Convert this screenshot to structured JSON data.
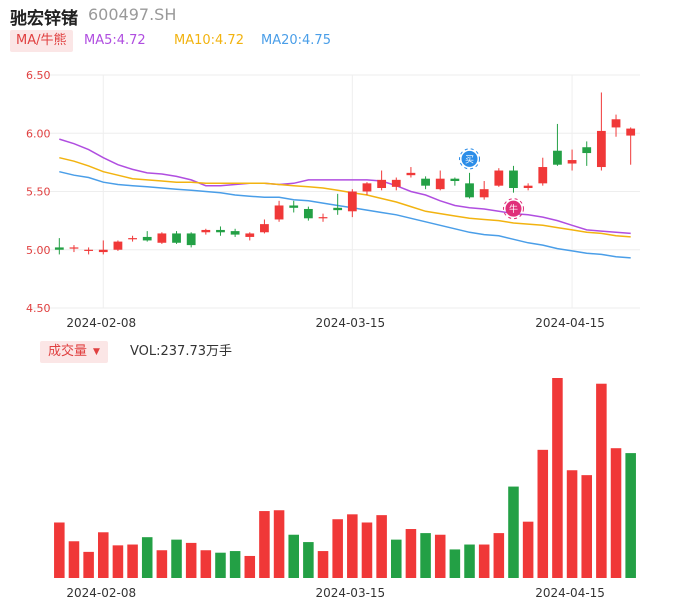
{
  "stock": {
    "name": "驰宏锌锗",
    "code": "600497.SH"
  },
  "ma_legend": {
    "selector_label": "MA/牛熊",
    "ma5": "MA5:4.72",
    "ma10": "MA10:4.72",
    "ma20": "MA20:4.75"
  },
  "volume_legend": {
    "selector_label": "成交量",
    "caret": "▼",
    "value_text": "VOL:237.73万手"
  },
  "colors": {
    "up": "#f03838",
    "down": "#23a045",
    "ma5": "#b04ee0",
    "ma10": "#f2b310",
    "ma20": "#4a9ee8",
    "grid": "#eeeeee",
    "axis_label": "#e04040",
    "date_label": "#333333"
  },
  "badges": [
    {
      "icon": "buy-signal-icon",
      "label": "买",
      "day_index": 28
    },
    {
      "icon": "bull-signal-icon",
      "label": "牛",
      "day_index": 31
    }
  ],
  "chart_data": [
    {
      "type": "candlestick",
      "title": "",
      "ylim": [
        4.5,
        6.5
      ],
      "y_ticks": [
        "6.50",
        "6.00",
        "5.50",
        "5.00",
        "4.50"
      ],
      "x_tick_labels": [
        {
          "index": 3,
          "label": "2024-02-08"
        },
        {
          "index": 20,
          "label": "2024-03-15"
        },
        {
          "index": 35,
          "label": "2024-04-15"
        }
      ],
      "grid": true,
      "candles": [
        {
          "o": 5.02,
          "h": 5.1,
          "l": 4.96,
          "c": 5.0
        },
        {
          "o": 5.01,
          "h": 5.04,
          "l": 4.98,
          "c": 5.02
        },
        {
          "o": 4.99,
          "h": 5.02,
          "l": 4.96,
          "c": 5.0
        },
        {
          "o": 4.98,
          "h": 5.08,
          "l": 4.96,
          "c": 5.0
        },
        {
          "o": 5.0,
          "h": 5.08,
          "l": 4.99,
          "c": 5.07
        },
        {
          "o": 5.09,
          "h": 5.12,
          "l": 5.07,
          "c": 5.1
        },
        {
          "o": 5.11,
          "h": 5.16,
          "l": 5.07,
          "c": 5.08
        },
        {
          "o": 5.06,
          "h": 5.15,
          "l": 5.05,
          "c": 5.14
        },
        {
          "o": 5.14,
          "h": 5.16,
          "l": 5.05,
          "c": 5.06
        },
        {
          "o": 5.14,
          "h": 5.15,
          "l": 5.02,
          "c": 5.04
        },
        {
          "o": 5.15,
          "h": 5.18,
          "l": 5.13,
          "c": 5.17
        },
        {
          "o": 5.17,
          "h": 5.2,
          "l": 5.12,
          "c": 5.15
        },
        {
          "o": 5.16,
          "h": 5.18,
          "l": 5.11,
          "c": 5.13
        },
        {
          "o": 5.11,
          "h": 5.15,
          "l": 5.08,
          "c": 5.14
        },
        {
          "o": 5.15,
          "h": 5.26,
          "l": 5.14,
          "c": 5.22
        },
        {
          "o": 5.26,
          "h": 5.42,
          "l": 5.24,
          "c": 5.38
        },
        {
          "o": 5.38,
          "h": 5.42,
          "l": 5.32,
          "c": 5.36
        },
        {
          "o": 5.35,
          "h": 5.37,
          "l": 5.25,
          "c": 5.27
        },
        {
          "o": 5.27,
          "h": 5.31,
          "l": 5.24,
          "c": 5.28
        },
        {
          "o": 5.36,
          "h": 5.48,
          "l": 5.3,
          "c": 5.34
        },
        {
          "o": 5.33,
          "h": 5.52,
          "l": 5.28,
          "c": 5.5
        },
        {
          "o": 5.5,
          "h": 5.58,
          "l": 5.47,
          "c": 5.57
        },
        {
          "o": 5.53,
          "h": 5.68,
          "l": 5.51,
          "c": 5.6
        },
        {
          "o": 5.54,
          "h": 5.62,
          "l": 5.51,
          "c": 5.6
        },
        {
          "o": 5.64,
          "h": 5.71,
          "l": 5.62,
          "c": 5.66
        },
        {
          "o": 5.61,
          "h": 5.63,
          "l": 5.52,
          "c": 5.55
        },
        {
          "o": 5.52,
          "h": 5.68,
          "l": 5.51,
          "c": 5.61
        },
        {
          "o": 5.61,
          "h": 5.62,
          "l": 5.55,
          "c": 5.59
        },
        {
          "o": 5.57,
          "h": 5.66,
          "l": 5.44,
          "c": 5.45
        },
        {
          "o": 5.45,
          "h": 5.59,
          "l": 5.43,
          "c": 5.52
        },
        {
          "o": 5.55,
          "h": 5.7,
          "l": 5.54,
          "c": 5.68
        },
        {
          "o": 5.68,
          "h": 5.72,
          "l": 5.49,
          "c": 5.53
        },
        {
          "o": 5.53,
          "h": 5.57,
          "l": 5.51,
          "c": 5.55
        },
        {
          "o": 5.57,
          "h": 5.79,
          "l": 5.55,
          "c": 5.71
        },
        {
          "o": 5.85,
          "h": 6.08,
          "l": 5.72,
          "c": 5.73
        },
        {
          "o": 5.74,
          "h": 5.86,
          "l": 5.68,
          "c": 5.77
        },
        {
          "o": 5.88,
          "h": 5.93,
          "l": 5.72,
          "c": 5.83
        },
        {
          "o": 5.71,
          "h": 6.35,
          "l": 5.68,
          "c": 6.02
        },
        {
          "o": 6.05,
          "h": 6.16,
          "l": 5.97,
          "c": 6.12
        },
        {
          "o": 5.98,
          "h": 6.05,
          "l": 5.73,
          "c": 6.04
        }
      ],
      "series": [
        {
          "name": "MA5",
          "values": [
            5.95,
            5.91,
            5.86,
            5.79,
            5.73,
            5.69,
            5.66,
            5.65,
            5.63,
            5.6,
            5.55,
            5.55,
            5.56,
            5.57,
            5.57,
            5.56,
            5.57,
            5.6,
            5.6,
            5.6,
            5.6,
            5.6,
            5.59,
            5.55,
            5.5,
            5.47,
            5.42,
            5.38,
            5.36,
            5.35,
            5.33,
            5.31,
            5.3,
            5.28,
            5.25,
            5.21,
            5.17,
            5.16,
            5.15,
            5.14
          ]
        },
        {
          "name": "MA10",
          "values": [
            5.79,
            5.76,
            5.72,
            5.67,
            5.64,
            5.61,
            5.6,
            5.59,
            5.58,
            5.58,
            5.57,
            5.57,
            5.57,
            5.57,
            5.57,
            5.56,
            5.55,
            5.54,
            5.53,
            5.51,
            5.49,
            5.47,
            5.44,
            5.41,
            5.37,
            5.33,
            5.31,
            5.29,
            5.27,
            5.26,
            5.25,
            5.23,
            5.22,
            5.21,
            5.19,
            5.17,
            5.15,
            5.14,
            5.12,
            5.11
          ]
        },
        {
          "name": "MA20",
          "values": [
            5.67,
            5.64,
            5.62,
            5.58,
            5.56,
            5.55,
            5.54,
            5.53,
            5.52,
            5.51,
            5.5,
            5.49,
            5.47,
            5.46,
            5.45,
            5.45,
            5.43,
            5.42,
            5.4,
            5.38,
            5.36,
            5.34,
            5.32,
            5.3,
            5.27,
            5.24,
            5.21,
            5.18,
            5.15,
            5.13,
            5.12,
            5.09,
            5.06,
            5.04,
            5.01,
            4.99,
            4.97,
            4.96,
            4.94,
            4.93
          ]
        }
      ]
    },
    {
      "type": "bar",
      "title": "",
      "ylabel": "",
      "ylim": [
        0,
        245
      ],
      "values": [
        68,
        45,
        32,
        56,
        40,
        41,
        50,
        34,
        47,
        43,
        34,
        31,
        33,
        27,
        82,
        83,
        53,
        44,
        33,
        72,
        78,
        68,
        77,
        47,
        60,
        55,
        53,
        35,
        41,
        41,
        55,
        112,
        69,
        157,
        245,
        132,
        126,
        238,
        159,
        153
      ],
      "directions": [
        "up",
        "up",
        "up",
        "up",
        "up",
        "up",
        "down",
        "up",
        "down",
        "up",
        "up",
        "down",
        "down",
        "up",
        "up",
        "up",
        "down",
        "down",
        "up",
        "up",
        "up",
        "up",
        "up",
        "down",
        "up",
        "down",
        "up",
        "down",
        "down",
        "up",
        "up",
        "down",
        "up",
        "up",
        "up",
        "up",
        "up",
        "up",
        "up",
        "down"
      ],
      "x_tick_labels": [
        {
          "index": 3,
          "label": "2024-02-08"
        },
        {
          "index": 20,
          "label": "2024-03-15"
        },
        {
          "index": 35,
          "label": "2024-04-15"
        }
      ]
    }
  ]
}
